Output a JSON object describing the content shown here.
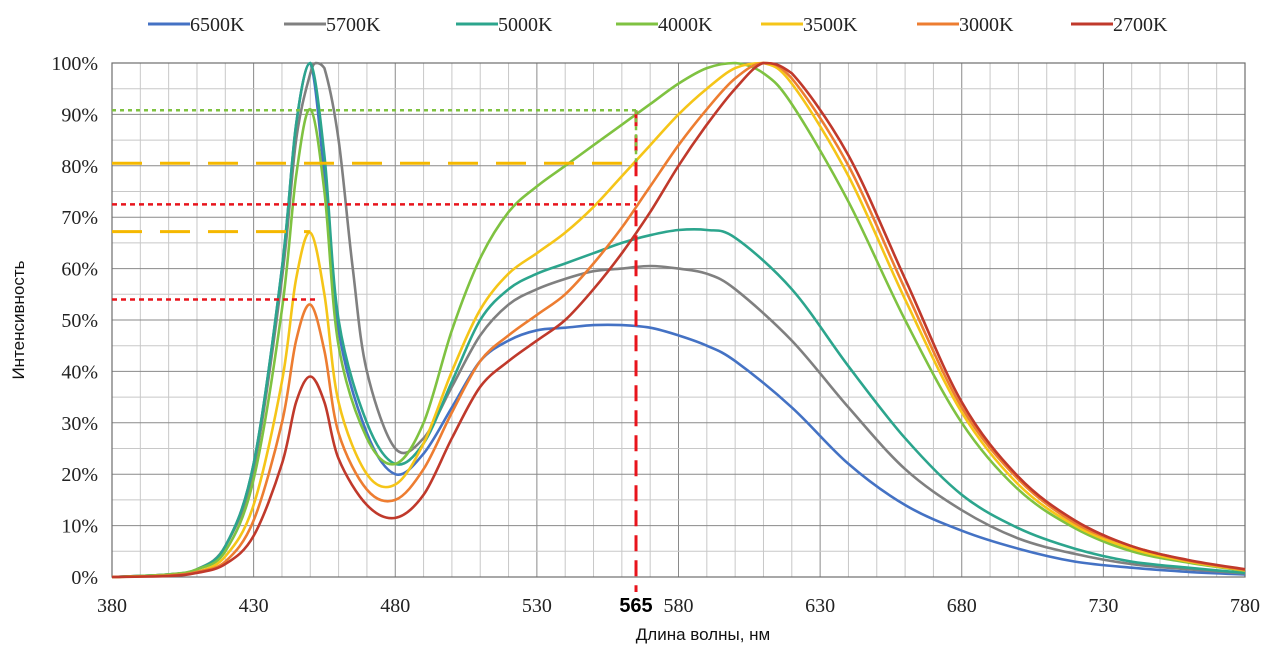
{
  "chart_data": {
    "type": "line",
    "xlabel": "Длина волны, нм",
    "ylabel": "Интенсивность",
    "xlim": [
      380,
      780
    ],
    "ylim": [
      0,
      100
    ],
    "x_ticks": [
      "380",
      "430",
      "480",
      "530",
      "580",
      "630",
      "680",
      "730",
      "780"
    ],
    "y_ticks": [
      "0%",
      "10%",
      "20%",
      "30%",
      "40%",
      "50%",
      "60%",
      "70%",
      "80%",
      "90%",
      "100%"
    ],
    "grid": true,
    "legend_position": "top",
    "marker": {
      "x": 565,
      "label": "565"
    },
    "series": [
      {
        "name": "6500K",
        "color": "#4472c4",
        "x": [
          380,
          400,
          410,
          420,
          430,
          440,
          445,
          450,
          455,
          460,
          470,
          480,
          490,
          500,
          510,
          520,
          530,
          540,
          550,
          560,
          570,
          580,
          590,
          600,
          620,
          640,
          660,
          680,
          700,
          720,
          740,
          760,
          780
        ],
        "y": [
          0,
          0.5,
          1.5,
          6,
          22,
          60,
          88,
          100,
          78,
          48,
          28,
          20,
          24,
          33,
          42,
          46,
          48,
          48.5,
          49,
          49,
          48.5,
          47,
          45,
          42,
          33,
          22,
          14,
          9,
          5.5,
          3,
          1.8,
          1,
          0.5
        ]
      },
      {
        "name": "5700K",
        "color": "#808080",
        "x": [
          380,
          400,
          410,
          420,
          430,
          440,
          445,
          450,
          452,
          455,
          460,
          465,
          470,
          480,
          490,
          500,
          510,
          520,
          530,
          540,
          550,
          560,
          570,
          580,
          590,
          600,
          620,
          640,
          660,
          680,
          700,
          720,
          740,
          760,
          780
        ],
        "y": [
          0,
          0.5,
          1.5,
          6,
          21,
          58,
          85,
          98,
          100,
          99,
          85,
          60,
          40,
          25,
          27,
          37,
          47,
          53,
          56,
          58,
          59.5,
          60,
          60.5,
          60,
          59,
          56,
          46,
          33,
          21,
          13,
          7.5,
          4.5,
          2.5,
          1.5,
          0.7
        ]
      },
      {
        "name": "5000K",
        "color": "#2ca58d",
        "x": [
          380,
          400,
          410,
          420,
          430,
          440,
          445,
          450,
          455,
          460,
          470,
          480,
          490,
          500,
          510,
          520,
          530,
          540,
          550,
          560,
          570,
          580,
          590,
          600,
          620,
          640,
          660,
          680,
          700,
          720,
          740,
          760,
          780
        ],
        "y": [
          0,
          0.5,
          1.5,
          6,
          22,
          60,
          88,
          100,
          82,
          50,
          30,
          22,
          26,
          38,
          50,
          56,
          59,
          61,
          63,
          65,
          66.5,
          67.5,
          67.5,
          66,
          56,
          41,
          27,
          16,
          9.5,
          5.5,
          3,
          1.8,
          0.8
        ]
      },
      {
        "name": "4000K",
        "color": "#7fc241",
        "x": [
          380,
          400,
          410,
          420,
          430,
          440,
          445,
          450,
          455,
          460,
          470,
          480,
          490,
          500,
          510,
          520,
          530,
          540,
          550,
          560,
          570,
          580,
          590,
          600,
          610,
          620,
          640,
          660,
          680,
          700,
          720,
          740,
          760,
          780
        ],
        "y": [
          0,
          0.5,
          1.5,
          5,
          19,
          52,
          78,
          91,
          75,
          45,
          27,
          22,
          30,
          48,
          62,
          71,
          76,
          80,
          84,
          88,
          92,
          96,
          99,
          100,
          98,
          92,
          73,
          50,
          30,
          17,
          9.5,
          5,
          2.8,
          1.2
        ]
      },
      {
        "name": "3500K",
        "color": "#f5c518",
        "x": [
          380,
          400,
          410,
          420,
          430,
          440,
          445,
          450,
          455,
          460,
          470,
          480,
          490,
          500,
          510,
          520,
          530,
          540,
          550,
          560,
          570,
          580,
          590,
          600,
          610,
          620,
          640,
          660,
          680,
          700,
          720,
          740,
          760,
          780
        ],
        "y": [
          0,
          0.3,
          1,
          4,
          14,
          38,
          58,
          67,
          55,
          34,
          20,
          18,
          26,
          40,
          52,
          59,
          63,
          67,
          72,
          78,
          84,
          90,
          95,
          99,
          100,
          96,
          78,
          54,
          32,
          18,
          10,
          5.5,
          3,
          1.3
        ]
      },
      {
        "name": "3000K",
        "color": "#ed7d31",
        "x": [
          380,
          400,
          410,
          420,
          430,
          440,
          445,
          450,
          455,
          460,
          470,
          480,
          490,
          500,
          510,
          520,
          530,
          540,
          550,
          560,
          570,
          580,
          590,
          600,
          610,
          620,
          640,
          660,
          680,
          700,
          720,
          740,
          760,
          780
        ],
        "y": [
          0,
          0.3,
          1,
          3,
          11,
          30,
          46,
          53,
          44,
          28,
          17,
          15,
          21,
          32,
          42,
          47,
          51,
          55,
          61,
          68,
          76,
          84,
          91,
          97,
          100,
          97,
          80,
          56,
          33,
          19,
          10.5,
          6,
          3.2,
          1.4
        ]
      },
      {
        "name": "2700K",
        "color": "#c0392b",
        "x": [
          380,
          400,
          410,
          420,
          430,
          440,
          445,
          450,
          455,
          460,
          470,
          480,
          490,
          500,
          510,
          520,
          530,
          540,
          550,
          560,
          570,
          580,
          590,
          600,
          610,
          620,
          640,
          660,
          680,
          700,
          720,
          740,
          760,
          780
        ],
        "y": [
          0,
          0.2,
          0.8,
          2.5,
          8,
          22,
          34,
          39,
          34,
          23,
          14,
          11.5,
          16,
          27,
          37,
          42,
          46,
          50,
          56,
          63,
          71,
          80,
          88,
          95,
          100,
          98,
          82,
          58,
          34,
          19.5,
          11,
          6,
          3.3,
          1.5
        ]
      }
    ]
  }
}
